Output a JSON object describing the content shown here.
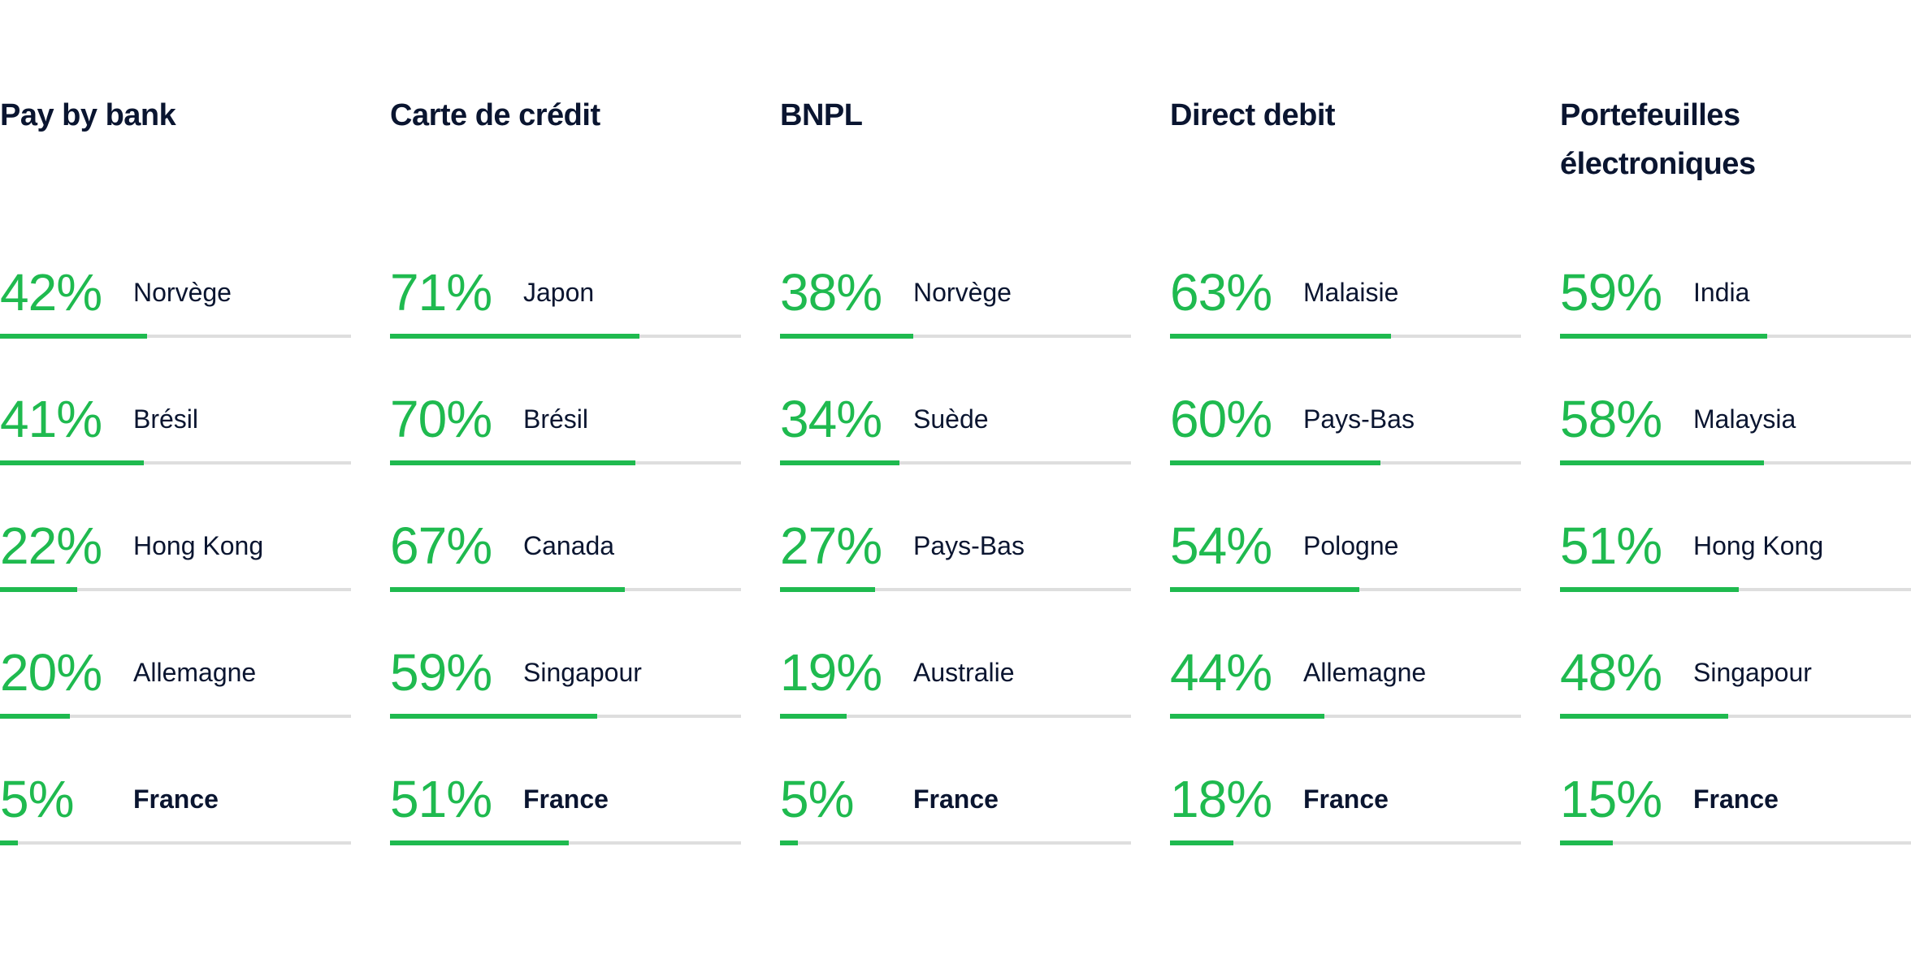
{
  "colors": {
    "accent": "#1fba4f",
    "track": "#dedede",
    "text": "#0a1530"
  },
  "chart_data": [
    {
      "type": "bar",
      "title": "Pay by bank",
      "categories": [
        "Norvège",
        "Brésil",
        "Hong Kong",
        "Allemagne",
        "France"
      ],
      "values": [
        42,
        41,
        22,
        20,
        5
      ],
      "labels": [
        "42%",
        "41%",
        "22%",
        "20%",
        "5%"
      ],
      "highlight": "France",
      "ylim": [
        0,
        100
      ]
    },
    {
      "type": "bar",
      "title": "Carte de crédit",
      "categories": [
        "Japon",
        "Brésil",
        "Canada",
        "Singapour",
        "France"
      ],
      "values": [
        71,
        70,
        67,
        59,
        51
      ],
      "labels": [
        "71%",
        "70%",
        "67%",
        "59%",
        "51%"
      ],
      "highlight": "France",
      "ylim": [
        0,
        100
      ]
    },
    {
      "type": "bar",
      "title": "BNPL",
      "categories": [
        "Norvège",
        "Suède",
        "Pays-Bas",
        "Australie",
        "France"
      ],
      "values": [
        38,
        34,
        27,
        19,
        5
      ],
      "labels": [
        "38%",
        "34%",
        "27%",
        "19%",
        "5%"
      ],
      "highlight": "France",
      "ylim": [
        0,
        100
      ]
    },
    {
      "type": "bar",
      "title": "Direct debit",
      "categories": [
        "Malaisie",
        "Pays-Bas",
        "Pologne",
        "Allemagne",
        "France"
      ],
      "values": [
        63,
        60,
        54,
        44,
        18
      ],
      "labels": [
        "63%",
        "60%",
        "54%",
        "44%",
        "18%"
      ],
      "highlight": "France",
      "ylim": [
        0,
        100
      ]
    },
    {
      "type": "bar",
      "title": "Portefeuilles électroniques",
      "categories": [
        "India",
        "Malaysia",
        "Hong Kong",
        "Singapour",
        "France"
      ],
      "values": [
        59,
        58,
        51,
        48,
        15
      ],
      "labels": [
        "59%",
        "58%",
        "51%",
        "48%",
        "15%"
      ],
      "highlight": "France",
      "ylim": [
        0,
        100
      ]
    }
  ]
}
